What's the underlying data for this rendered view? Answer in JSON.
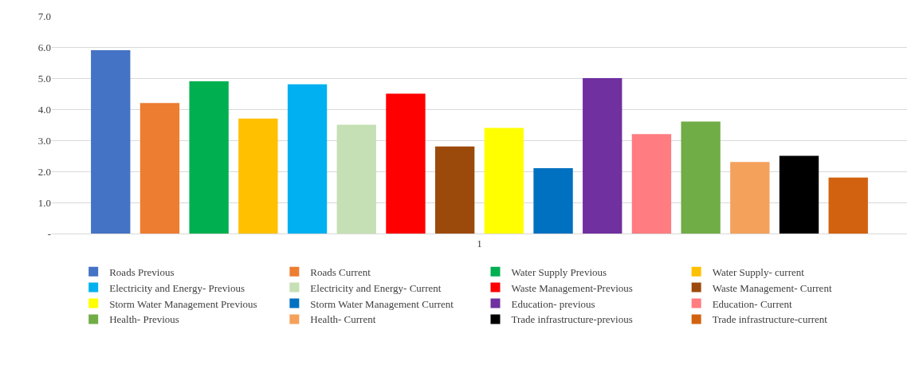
{
  "chart_data": {
    "type": "bar",
    "categories": [
      "1"
    ],
    "series": [
      {
        "name": "Roads Previous",
        "color": "#4472c4",
        "values": [
          5.9
        ]
      },
      {
        "name": "Roads Current",
        "color": "#ed7d31",
        "values": [
          4.2
        ]
      },
      {
        "name": "Water Supply Previous",
        "color": "#00b050",
        "values": [
          4.9
        ]
      },
      {
        "name": "Water Supply- current",
        "color": "#ffc000",
        "values": [
          3.7
        ]
      },
      {
        "name": "Electricity and Energy- Previous",
        "color": "#00b0f0",
        "values": [
          4.8
        ]
      },
      {
        "name": "Electricity and Energy- Current",
        "color": "#c5e0b4",
        "values": [
          3.5
        ]
      },
      {
        "name": "Waste Management-Previous",
        "color": "#ff0000",
        "values": [
          4.5
        ]
      },
      {
        "name": "Waste Management- Current",
        "color": "#9c4a0c",
        "values": [
          2.8
        ]
      },
      {
        "name": "Storm Water Management Previous",
        "color": "#ffff00",
        "values": [
          3.4
        ]
      },
      {
        "name": "Storm Water Management Current",
        "color": "#0070c0",
        "values": [
          2.1
        ]
      },
      {
        "name": "Education- previous",
        "color": "#7030a0",
        "values": [
          5.0
        ]
      },
      {
        "name": "Education- Current",
        "color": "#ff7c80",
        "values": [
          3.2
        ]
      },
      {
        "name": "Health- Previous",
        "color": "#70ad47",
        "values": [
          3.6
        ]
      },
      {
        "name": "Health- Current",
        "color": "#f4a15c",
        "values": [
          2.3
        ]
      },
      {
        "name": "Trade infrastructure-previous",
        "color": "#000000",
        "values": [
          2.5
        ]
      },
      {
        "name": "Trade infrastructure-current",
        "color": "#d2620f",
        "values": [
          1.8
        ]
      }
    ],
    "ylim": [
      0,
      7
    ],
    "yticks": [
      {
        "value": 0,
        "label": "-"
      },
      {
        "value": 1,
        "label": "1.0"
      },
      {
        "value": 2,
        "label": "2.0"
      },
      {
        "value": 3,
        "label": "3.0"
      },
      {
        "value": 4,
        "label": "4.0"
      },
      {
        "value": 5,
        "label": "5.0"
      },
      {
        "value": 6,
        "label": "6.0"
      },
      {
        "value": 7,
        "label": "7.0"
      }
    ],
    "grid": "y",
    "legend": "bottom"
  }
}
